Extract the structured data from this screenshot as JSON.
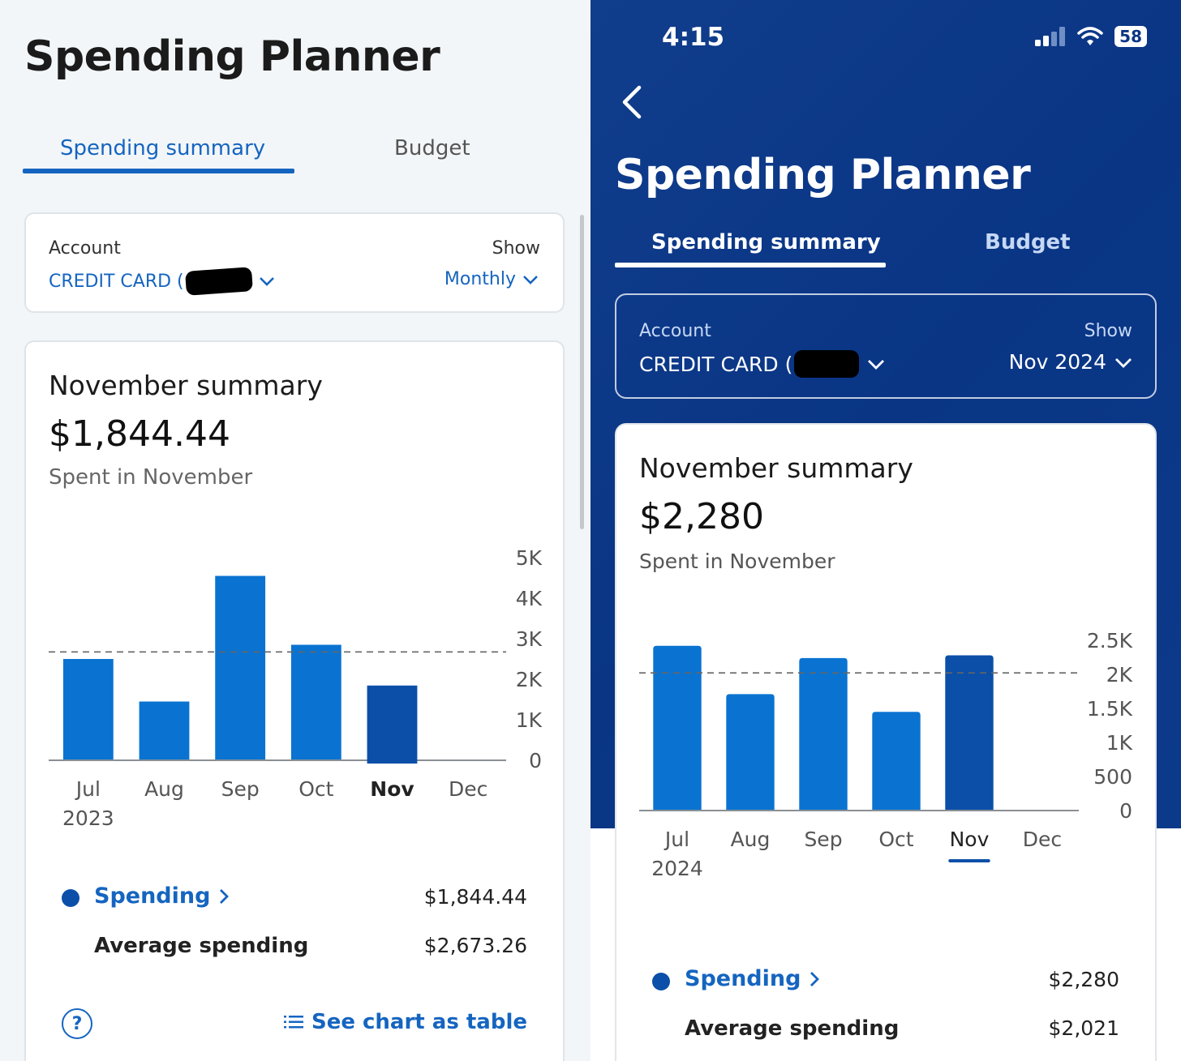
{
  "left": {
    "title": "Spending Planner",
    "tabs": [
      {
        "label": "Spending summary",
        "active": true
      },
      {
        "label": "Budget",
        "active": false
      }
    ],
    "account": {
      "label": "Account",
      "value": "CREDIT CARD (",
      "show_label": "Show",
      "show_value": "Monthly"
    },
    "summary": {
      "title": "November summary",
      "amount": "$1,844.44",
      "subtitle": "Spent in November"
    },
    "legend": {
      "spending_label": "Spending",
      "spending_value": "$1,844.44",
      "average_label": "Average spending",
      "average_value": "$2,673.26"
    },
    "help_icon_text": "?",
    "table_link": "See chart as table"
  },
  "right": {
    "time": "4:15",
    "battery": "58",
    "title": "Spending Planner",
    "tabs": [
      {
        "label": "Spending summary",
        "active": true
      },
      {
        "label": "Budget",
        "active": false
      }
    ],
    "account": {
      "label": "Account",
      "value": "CREDIT CARD (",
      "show_label": "Show",
      "show_value": "Nov 2024"
    },
    "summary": {
      "title": "November summary",
      "amount": "$2,280",
      "subtitle": "Spent in November"
    },
    "legend": {
      "spending_label": "Spending",
      "spending_value": "$2,280",
      "average_label": "Average spending",
      "average_value": "$2,021"
    }
  },
  "colors": {
    "bar": "#0a73d1",
    "bar_selected": "#0b4fa8",
    "link": "#1565c0",
    "header_bg": "#0a3585"
  },
  "chart_data": [
    {
      "type": "bar",
      "title": "November summary",
      "categories": [
        "Jul",
        "Aug",
        "Sep",
        "Oct",
        "Nov",
        "Dec"
      ],
      "year_label": "2023",
      "values": [
        2500,
        1450,
        4550,
        2850,
        1844.44,
        0
      ],
      "selected": "Nov",
      "average": 2673.26,
      "y_ticks": [
        "0",
        "1K",
        "2K",
        "3K",
        "4K",
        "5K"
      ],
      "ylim": [
        0,
        5000
      ]
    },
    {
      "type": "bar",
      "title": "November summary",
      "categories": [
        "Jul",
        "Aug",
        "Sep",
        "Oct",
        "Nov",
        "Dec"
      ],
      "year_label": "2024",
      "values": [
        2420,
        1710,
        2240,
        1450,
        2280,
        0
      ],
      "selected": "Nov",
      "average": 2021,
      "y_ticks": [
        "0",
        "500",
        "1K",
        "1.5K",
        "2K",
        "2.5K"
      ],
      "ylim": [
        0,
        2500
      ]
    }
  ]
}
